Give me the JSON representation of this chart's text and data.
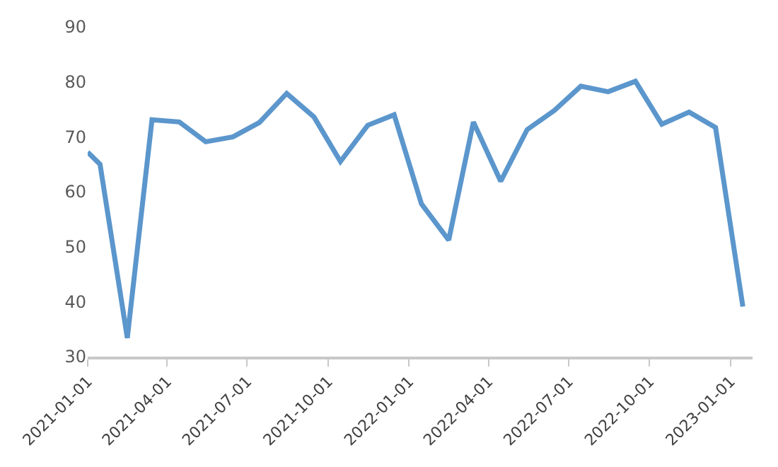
{
  "chart_data": {
    "type": "line",
    "x": [
      "2021-01-01",
      "2021-01-15",
      "2021-02-15",
      "2021-03-15",
      "2021-04-15",
      "2021-05-15",
      "2021-06-15",
      "2021-07-15",
      "2021-08-15",
      "2021-09-15",
      "2021-10-15",
      "2021-11-15",
      "2021-12-15",
      "2022-01-15",
      "2022-02-15",
      "2022-03-15",
      "2022-04-15",
      "2022-05-15",
      "2022-06-15",
      "2022-07-15",
      "2022-08-15",
      "2022-09-15",
      "2022-10-15",
      "2022-11-15",
      "2022-12-15",
      "2023-01-15"
    ],
    "series": [
      {
        "color": "#5b96cc",
        "values": [
          67.2,
          65.0,
          33.4,
          73.1,
          72.7,
          69.1,
          70.0,
          72.6,
          77.9,
          73.6,
          65.5,
          72.1,
          74.0,
          57.8,
          51.2,
          72.7,
          61.9,
          71.3,
          74.8,
          79.2,
          78.2,
          80.1,
          72.3,
          74.5,
          71.7,
          39.1
        ]
      }
    ],
    "xlim": [
      "2021-01-01",
      "2023-01-26"
    ],
    "xticks": [
      "2021-01-01",
      "2021-04-01",
      "2021-07-01",
      "2021-10-01",
      "2022-01-01",
      "2022-04-01",
      "2022-07-01",
      "2022-10-01",
      "2023-01-01"
    ],
    "ylim": [
      30,
      90
    ],
    "yticks": [
      30,
      40,
      50,
      60,
      70,
      80,
      90
    ],
    "legend": false,
    "marker": "none",
    "line_style": "solid"
  }
}
